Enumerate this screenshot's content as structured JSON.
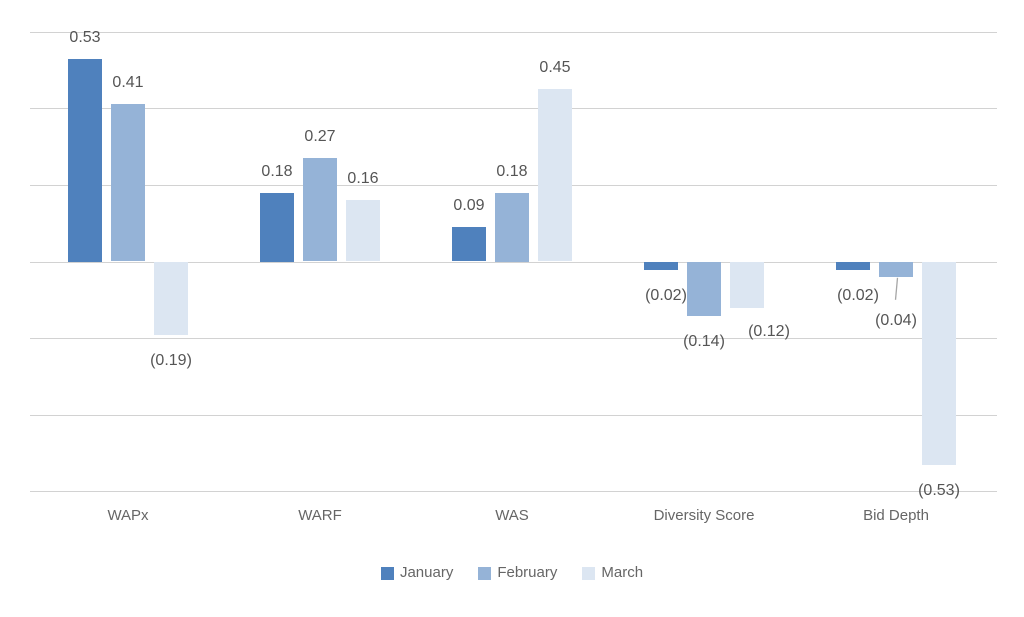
{
  "chart_data": {
    "type": "bar",
    "title": "",
    "xlabel": "",
    "ylabel": "",
    "categories": [
      "WAPx",
      "WARF",
      "WAS",
      "Diversity Score",
      "Bid Depth"
    ],
    "series": [
      {
        "name": "January",
        "color": "#4F81BD",
        "values": [
          0.53,
          0.18,
          0.09,
          -0.02,
          -0.02
        ],
        "labels": [
          "0.53",
          "0.18",
          "0.09",
          "(0.02)",
          "(0.02)"
        ]
      },
      {
        "name": "February",
        "color": "#95B3D7",
        "values": [
          0.41,
          0.27,
          0.18,
          -0.14,
          -0.04
        ],
        "labels": [
          "0.41",
          "0.27",
          "0.18",
          "(0.14)",
          "(0.04)"
        ]
      },
      {
        "name": "March",
        "color": "#DCE6F2",
        "values": [
          -0.19,
          0.16,
          0.45,
          -0.12,
          -0.53
        ],
        "labels": [
          "(0.19)",
          "0.16",
          "0.45",
          "(0.12)",
          "(0.53)"
        ]
      }
    ],
    "ylim": [
      -0.6,
      0.6
    ],
    "gridline_step": 0.2,
    "grid": true,
    "y_axis_tick_labels_visible": false,
    "legend_position": "bottom",
    "label_format": "negative-in-parentheses"
  },
  "colors": {
    "background": "#FFFFFF",
    "gridline": "#D2D2D2",
    "data_label": "#555555",
    "category_label": "#666666",
    "legend_label": "#666666",
    "leader_line": "#A6A6A6"
  }
}
